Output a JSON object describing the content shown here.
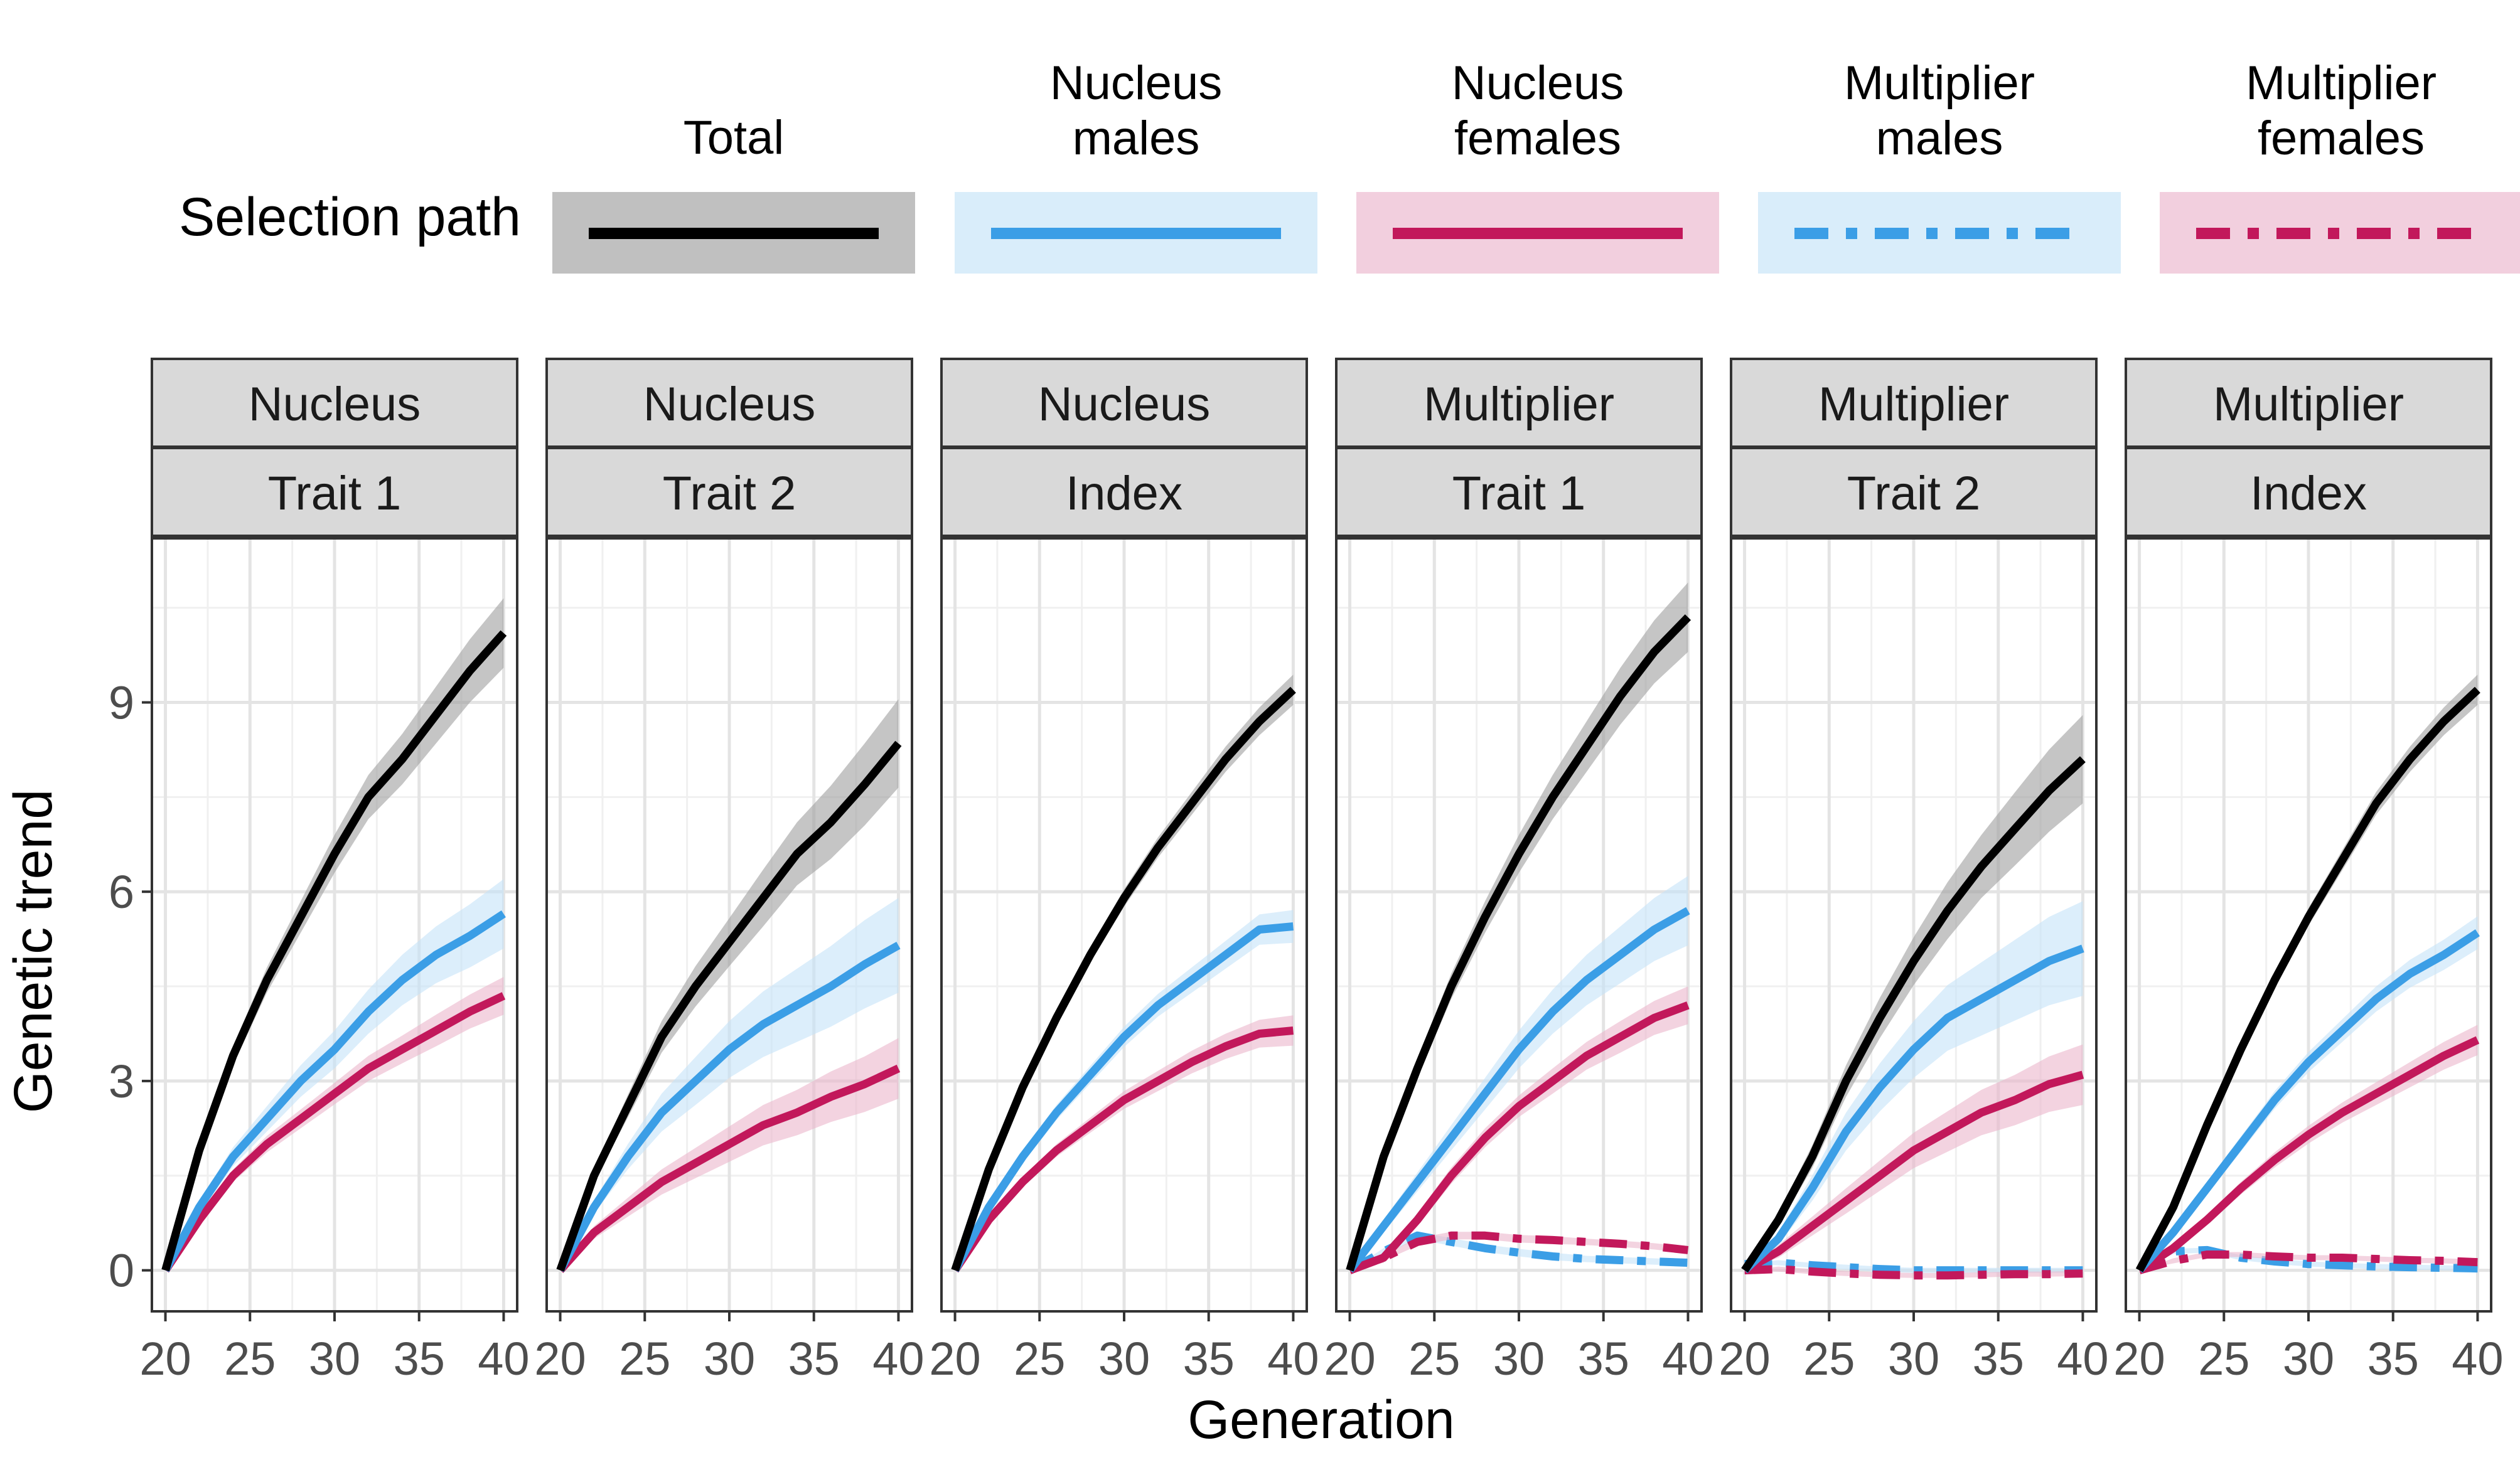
{
  "legend": {
    "title": "Selection path",
    "entries": [
      {
        "key": "total",
        "lines": [
          "Total"
        ],
        "color": "#000000",
        "band": "#9e9e9e",
        "dashed": false
      },
      {
        "key": "nucleus_males",
        "lines": [
          "Nucleus",
          "males"
        ],
        "color": "#3b9ee6",
        "band": "#c4e3f8",
        "dashed": false
      },
      {
        "key": "nucleus_females",
        "lines": [
          "Nucleus",
          "females"
        ],
        "color": "#c2185b",
        "band": "#ebb5cc",
        "dashed": false
      },
      {
        "key": "multiplier_males",
        "lines": [
          "Multiplier",
          "males"
        ],
        "color": "#3b9ee6",
        "band": "#c4e3f8",
        "dashed": true
      },
      {
        "key": "multiplier_females",
        "lines": [
          "Multiplier",
          "females"
        ],
        "color": "#c2185b",
        "band": "#ebb5cc",
        "dashed": true
      }
    ]
  },
  "axes": {
    "xlabel": "Generation",
    "ylabel": "Genetic trend",
    "xticks": [
      "20",
      "25",
      "30",
      "35",
      "40"
    ],
    "yticks": [
      "0",
      "3",
      "6",
      "9"
    ]
  },
  "chart_data": {
    "type": "line",
    "xlim": [
      19.2,
      40.8
    ],
    "ylim": [
      -0.65,
      11.6
    ],
    "x": [
      20,
      22,
      24,
      26,
      28,
      30,
      32,
      34,
      36,
      38,
      40
    ],
    "grid": true,
    "panels": [
      {
        "strip_top": "Nucleus",
        "strip_bottom": "Trait 1",
        "series": {
          "total": {
            "values": [
              0,
              1.9,
              3.4,
              4.6,
              5.6,
              6.6,
              7.5,
              8.1,
              8.8,
              9.5,
              10.1
            ],
            "ci": [
              0,
              0.1,
              0.15,
              0.2,
              0.25,
              0.3,
              0.35,
              0.4,
              0.45,
              0.5,
              0.55
            ]
          },
          "nucleus_males": {
            "values": [
              0,
              1.0,
              1.8,
              2.4,
              3.0,
              3.5,
              4.1,
              4.6,
              5.0,
              5.3,
              5.65
            ],
            "ci": [
              0,
              0.1,
              0.15,
              0.2,
              0.25,
              0.3,
              0.35,
              0.4,
              0.45,
              0.5,
              0.55
            ]
          },
          "nucleus_females": {
            "values": [
              0,
              0.8,
              1.5,
              2.0,
              2.4,
              2.8,
              3.2,
              3.5,
              3.8,
              4.1,
              4.35
            ],
            "ci": [
              0,
              0.08,
              0.1,
              0.13,
              0.15,
              0.17,
              0.2,
              0.22,
              0.25,
              0.27,
              0.3
            ]
          }
        }
      },
      {
        "strip_top": "Nucleus",
        "strip_bottom": "Trait 2",
        "series": {
          "total": {
            "values": [
              0,
              1.5,
              2.6,
              3.7,
              4.5,
              5.2,
              5.9,
              6.6,
              7.1,
              7.7,
              8.35
            ],
            "ci": [
              0,
              0.1,
              0.18,
              0.25,
              0.32,
              0.38,
              0.45,
              0.5,
              0.58,
              0.65,
              0.7
            ]
          },
          "nucleus_males": {
            "values": [
              0,
              1.0,
              1.8,
              2.5,
              3.0,
              3.5,
              3.9,
              4.2,
              4.5,
              4.85,
              5.15
            ],
            "ci": [
              0,
              0.1,
              0.2,
              0.3,
              0.38,
              0.45,
              0.52,
              0.58,
              0.64,
              0.7,
              0.75
            ]
          },
          "nucleus_females": {
            "values": [
              0,
              0.6,
              1.0,
              1.4,
              1.7,
              2.0,
              2.3,
              2.5,
              2.75,
              2.95,
              3.2
            ],
            "ci": [
              0,
              0.1,
              0.15,
              0.2,
              0.24,
              0.28,
              0.32,
              0.36,
              0.4,
              0.44,
              0.48
            ]
          }
        }
      },
      {
        "strip_top": "Nucleus",
        "strip_bottom": "Index",
        "series": {
          "total": {
            "values": [
              0,
              1.6,
              2.9,
              4.0,
              5.0,
              5.9,
              6.7,
              7.4,
              8.1,
              8.7,
              9.2
            ],
            "ci": [
              0,
              0.05,
              0.08,
              0.1,
              0.12,
              0.14,
              0.16,
              0.18,
              0.2,
              0.22,
              0.24
            ]
          },
          "nucleus_males": {
            "values": [
              0,
              1.0,
              1.8,
              2.5,
              3.1,
              3.7,
              4.2,
              4.6,
              5.0,
              5.4,
              5.45
            ],
            "ci": [
              0,
              0.06,
              0.1,
              0.12,
              0.14,
              0.16,
              0.18,
              0.2,
              0.22,
              0.24,
              0.26
            ]
          },
          "nucleus_females": {
            "values": [
              0,
              0.8,
              1.4,
              1.9,
              2.3,
              2.7,
              3.0,
              3.3,
              3.55,
              3.75,
              3.8
            ],
            "ci": [
              0,
              0.05,
              0.08,
              0.1,
              0.12,
              0.14,
              0.16,
              0.18,
              0.2,
              0.22,
              0.24
            ]
          }
        }
      },
      {
        "strip_top": "Multiplier",
        "strip_bottom": "Trait 1",
        "series": {
          "total": {
            "values": [
              0,
              1.8,
              3.2,
              4.5,
              5.6,
              6.6,
              7.5,
              8.3,
              9.1,
              9.8,
              10.35
            ],
            "ci": [
              0,
              0.1,
              0.15,
              0.2,
              0.25,
              0.3,
              0.35,
              0.4,
              0.45,
              0.5,
              0.55
            ]
          },
          "nucleus_males": {
            "values": [
              0,
              0.7,
              1.4,
              2.1,
              2.8,
              3.5,
              4.1,
              4.6,
              5.0,
              5.4,
              5.7
            ],
            "ci": [
              0,
              0.1,
              0.15,
              0.2,
              0.25,
              0.3,
              0.35,
              0.4,
              0.45,
              0.5,
              0.55
            ]
          },
          "nucleus_females": {
            "values": [
              0,
              0.2,
              0.8,
              1.5,
              2.1,
              2.6,
              3.0,
              3.4,
              3.7,
              4.0,
              4.2
            ],
            "ci": [
              0,
              0.08,
              0.1,
              0.13,
              0.15,
              0.17,
              0.2,
              0.22,
              0.25,
              0.27,
              0.3
            ]
          },
          "multiplier_males": {
            "values": [
              0,
              0.3,
              0.55,
              0.45,
              0.35,
              0.28,
              0.22,
              0.18,
              0.16,
              0.14,
              0.12
            ],
            "ci": [
              0,
              0.05,
              0.06,
              0.06,
              0.06,
              0.06,
              0.06,
              0.05,
              0.05,
              0.05,
              0.05
            ]
          },
          "multiplier_females": {
            "values": [
              0,
              0.2,
              0.45,
              0.55,
              0.55,
              0.5,
              0.48,
              0.45,
              0.42,
              0.38,
              0.32
            ],
            "ci": [
              0,
              0.05,
              0.06,
              0.06,
              0.06,
              0.06,
              0.06,
              0.05,
              0.05,
              0.05,
              0.05
            ]
          }
        }
      },
      {
        "strip_top": "Multiplier",
        "strip_bottom": "Trait 2",
        "series": {
          "total": {
            "values": [
              0,
              0.8,
              1.8,
              3.0,
              4.0,
              4.9,
              5.7,
              6.4,
              7.0,
              7.6,
              8.1
            ],
            "ci": [
              0,
              0.1,
              0.18,
              0.25,
              0.32,
              0.38,
              0.45,
              0.5,
              0.58,
              0.65,
              0.7
            ]
          },
          "nucleus_males": {
            "values": [
              0,
              0.5,
              1.3,
              2.2,
              2.9,
              3.5,
              4.0,
              4.3,
              4.6,
              4.9,
              5.1
            ],
            "ci": [
              0,
              0.1,
              0.2,
              0.3,
              0.38,
              0.45,
              0.52,
              0.58,
              0.64,
              0.7,
              0.75
            ]
          },
          "nucleus_females": {
            "values": [
              0,
              0.3,
              0.7,
              1.1,
              1.5,
              1.9,
              2.2,
              2.5,
              2.7,
              2.95,
              3.1
            ],
            "ci": [
              0,
              0.1,
              0.15,
              0.2,
              0.24,
              0.28,
              0.32,
              0.36,
              0.4,
              0.44,
              0.48
            ]
          },
          "multiplier_males": {
            "values": [
              0.1,
              0.12,
              0.08,
              0.05,
              0.02,
              0.0,
              0.0,
              0.0,
              0.0,
              0.0,
              0.0
            ],
            "ci": [
              0,
              0.04,
              0.04,
              0.04,
              0.04,
              0.04,
              0.04,
              0.04,
              0.04,
              0.04,
              0.04
            ]
          },
          "multiplier_females": {
            "values": [
              0.0,
              0.02,
              -0.02,
              -0.05,
              -0.07,
              -0.08,
              -0.08,
              -0.07,
              -0.06,
              -0.06,
              -0.05
            ],
            "ci": [
              0,
              0.04,
              0.04,
              0.04,
              0.04,
              0.04,
              0.04,
              0.04,
              0.04,
              0.04,
              0.04
            ]
          }
        }
      },
      {
        "strip_top": "Multiplier",
        "strip_bottom": "Index",
        "series": {
          "total": {
            "values": [
              0,
              1.0,
              2.3,
              3.5,
              4.6,
              5.6,
              6.5,
              7.4,
              8.1,
              8.7,
              9.2
            ],
            "ci": [
              0,
              0.05,
              0.08,
              0.1,
              0.12,
              0.14,
              0.16,
              0.18,
              0.2,
              0.22,
              0.24
            ]
          },
          "nucleus_males": {
            "values": [
              0,
              0.6,
              1.3,
              2.0,
              2.7,
              3.3,
              3.8,
              4.3,
              4.7,
              5.0,
              5.35
            ],
            "ci": [
              0,
              0.06,
              0.1,
              0.12,
              0.14,
              0.16,
              0.18,
              0.2,
              0.22,
              0.24,
              0.26
            ]
          },
          "nucleus_females": {
            "values": [
              0,
              0.35,
              0.8,
              1.3,
              1.75,
              2.15,
              2.5,
              2.8,
              3.1,
              3.4,
              3.65
            ],
            "ci": [
              0,
              0.05,
              0.08,
              0.1,
              0.12,
              0.14,
              0.16,
              0.18,
              0.2,
              0.22,
              0.24
            ]
          },
          "multiplier_males": {
            "values": [
              0,
              0.3,
              0.32,
              0.2,
              0.14,
              0.1,
              0.08,
              0.06,
              0.05,
              0.04,
              0.03
            ],
            "ci": [
              0,
              0.04,
              0.04,
              0.04,
              0.04,
              0.04,
              0.04,
              0.04,
              0.04,
              0.04,
              0.04
            ]
          },
          "multiplier_females": {
            "values": [
              0,
              0.15,
              0.25,
              0.25,
              0.22,
              0.2,
              0.2,
              0.18,
              0.16,
              0.15,
              0.13
            ],
            "ci": [
              0,
              0.04,
              0.04,
              0.04,
              0.04,
              0.04,
              0.04,
              0.04,
              0.04,
              0.04,
              0.04
            ]
          }
        }
      }
    ]
  }
}
